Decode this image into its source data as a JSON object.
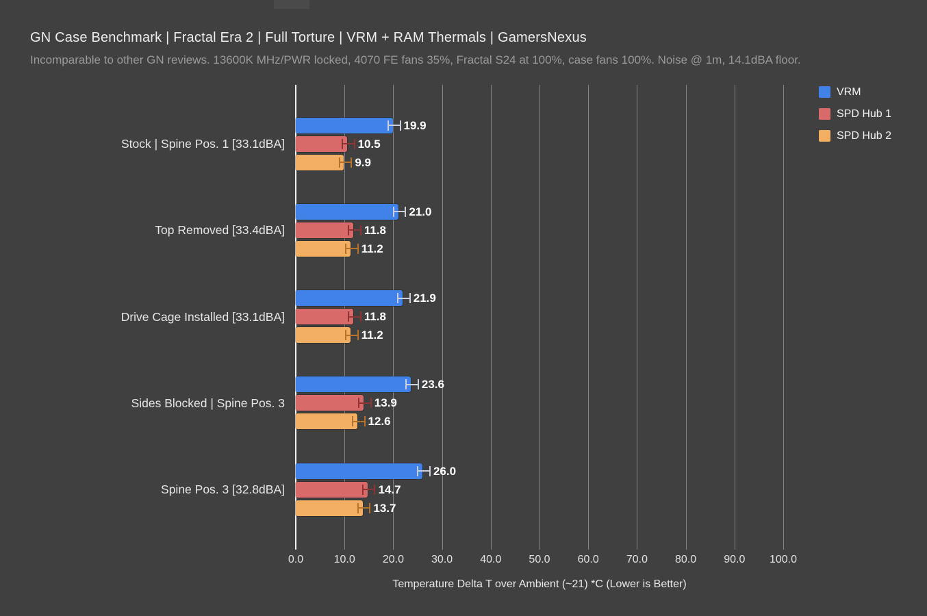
{
  "header": {
    "title": "GN Case Benchmark | Fractal Era 2 | Full Torture | VRM + RAM Thermals | GamersNexus",
    "subtitle": "Incomparable to other GN reviews. 13600K MHz/PWR locked, 4070 FE fans 35%, Fractal S24 at 100%, case fans 100%. Noise @ 1m, 14.1dBA floor."
  },
  "chart_data": {
    "type": "bar",
    "orientation": "horizontal",
    "title": "GN Case Benchmark | Fractal Era 2 | Full Torture | VRM + RAM Thermals | GamersNexus",
    "categories": [
      "Stock | Spine Pos. 1 [33.1dBA]",
      "Top Removed [33.4dBA]",
      "Drive Cage Installed [33.1dBA]",
      "Sides Blocked | Spine Pos. 3",
      "Spine Pos. 3 [32.8dBA]"
    ],
    "series": [
      {
        "name": "VRM",
        "color": "#4182e8",
        "error_color": "#c9cfdc",
        "values": [
          19.9,
          21.0,
          21.9,
          23.6,
          26.0
        ]
      },
      {
        "name": "SPD Hub 1",
        "color": "#d96a6a",
        "error_color": "#8f3434",
        "values": [
          10.5,
          11.8,
          11.8,
          13.9,
          14.7
        ]
      },
      {
        "name": "SPD Hub 2",
        "color": "#f2ae63",
        "error_color": "#b5722b",
        "values": [
          9.9,
          11.2,
          11.2,
          12.6,
          13.7
        ]
      }
    ],
    "error_margin": 1.1,
    "xlabel": "Temperature Delta T over Ambient (~21) *C (Lower is Better)",
    "xlim": [
      0,
      100
    ],
    "xticks": [
      "0.0",
      "10.0",
      "20.0",
      "30.0",
      "40.0",
      "50.0",
      "60.0",
      "70.0",
      "80.0",
      "90.0",
      "100.0"
    ],
    "grid": true,
    "legend_position": "top-right"
  },
  "colors": {
    "background": "#404040",
    "gridline": "#858585",
    "zero_axis": "#f2f2f2",
    "title_text": "#ededed",
    "subtitle_text": "#9a9a9a",
    "value_label_text": "#ffffff"
  }
}
